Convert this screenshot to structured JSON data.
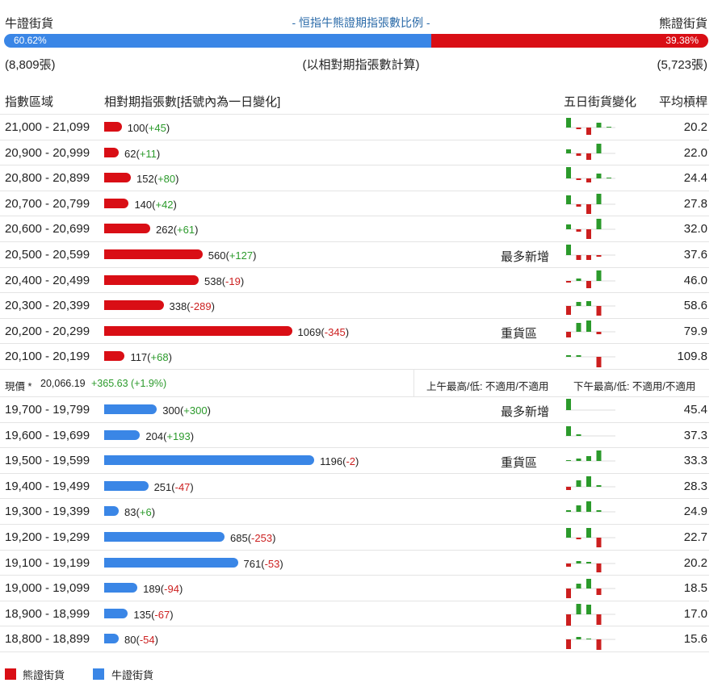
{
  "header": {
    "bull_label": "牛證街貨",
    "title": "- 恒指牛熊證期指張數比例 -",
    "bear_label": "熊證街貨",
    "bull_pct": "60.62%",
    "bear_pct": "39.38%",
    "bull_ratio": 0.6062,
    "bull_count": "(8,809張)",
    "basis_note": "(以相對期指張數計算)",
    "bear_count": "(5,723張)"
  },
  "columns": {
    "range": "指數區域",
    "contracts": "相對期指張數[括號內為一日變化]",
    "five_day": "五日街貨變化",
    "avg_leverage": "平均槓桿"
  },
  "colors": {
    "bear": "#d90e15",
    "bull": "#3a86e6",
    "up": "#2b9a2b",
    "down": "#cc1f1f"
  },
  "bear_rows": [
    {
      "range": "21,000 - 21,099",
      "value": 100,
      "count": "100",
      "change": "+45",
      "tag": "",
      "avg": "20.2",
      "five_day": [
        12,
        -2,
        -9,
        6,
        1
      ]
    },
    {
      "range": "20,900 - 20,999",
      "value": 62,
      "count": "62",
      "change": "+11",
      "tag": "",
      "avg": "22.0",
      "five_day": [
        5,
        -3,
        -8,
        12,
        0
      ]
    },
    {
      "range": "20,800 - 20,899",
      "value": 152,
      "count": "152",
      "change": "+80",
      "tag": "",
      "avg": "24.4",
      "five_day": [
        14,
        -2,
        -5,
        6,
        1
      ]
    },
    {
      "range": "20,700 - 20,799",
      "value": 140,
      "count": "140",
      "change": "+42",
      "tag": "",
      "avg": "27.8",
      "five_day": [
        11,
        -3,
        -12,
        13,
        0
      ]
    },
    {
      "range": "20,600 - 20,699",
      "value": 262,
      "count": "262",
      "change": "+61",
      "tag": "",
      "avg": "32.0",
      "five_day": [
        6,
        -3,
        -12,
        13,
        0
      ]
    },
    {
      "range": "20,500 - 20,599",
      "value": 560,
      "count": "560",
      "change": "+127",
      "tag": "最多新增",
      "avg": "37.6",
      "five_day": [
        13,
        -6,
        -6,
        -2,
        0
      ]
    },
    {
      "range": "20,400 - 20,499",
      "value": 538,
      "count": "538",
      "change": "-19",
      "tag": "",
      "avg": "46.0",
      "five_day": [
        -2,
        3,
        -9,
        13,
        0
      ]
    },
    {
      "range": "20,300 - 20,399",
      "value": 338,
      "count": "338",
      "change": "-289",
      "tag": "",
      "avg": "58.6",
      "five_day": [
        -11,
        5,
        6,
        -12,
        0
      ]
    },
    {
      "range": "20,200 - 20,299",
      "value": 1069,
      "count": "1069",
      "change": "-345",
      "tag": "重貨區",
      "avg": "79.9",
      "five_day": [
        -7,
        11,
        14,
        -3,
        0
      ]
    },
    {
      "range": "20,100 - 20,199",
      "value": 117,
      "count": "117",
      "change": "+68",
      "tag": "",
      "avg": "109.8",
      "five_day": [
        2,
        2,
        0,
        -13,
        0
      ]
    }
  ],
  "price": {
    "label": "現價 *",
    "value": "20,066.19",
    "change": "+365.63 (+1.9%)",
    "am": "上午最高/低: 不適用/不適用",
    "pm": "下午最高/低: 不適用/不適用"
  },
  "bull_rows": [
    {
      "range": "19,700 - 19,799",
      "value": 300,
      "count": "300",
      "change": "+300",
      "tag": "最多新增",
      "avg": "45.4",
      "five_day": [
        14,
        0,
        0,
        0,
        0
      ]
    },
    {
      "range": "19,600 - 19,699",
      "value": 204,
      "count": "204",
      "change": "+193",
      "tag": "",
      "avg": "37.3",
      "five_day": [
        12,
        2,
        0,
        0,
        0
      ]
    },
    {
      "range": "19,500 - 19,599",
      "value": 1196,
      "count": "1196",
      "change": "-2",
      "tag": "重貨區",
      "avg": "33.3",
      "five_day": [
        1,
        3,
        6,
        13,
        0
      ]
    },
    {
      "range": "19,400 - 19,499",
      "value": 251,
      "count": "251",
      "change": "-47",
      "tag": "",
      "avg": "28.3",
      "five_day": [
        -4,
        8,
        13,
        2,
        0
      ]
    },
    {
      "range": "19,300 - 19,399",
      "value": 83,
      "count": "83",
      "change": "+6",
      "tag": "",
      "avg": "24.9",
      "five_day": [
        2,
        8,
        13,
        2,
        0
      ]
    },
    {
      "range": "19,200 - 19,299",
      "value": 685,
      "count": "685",
      "change": "-253",
      "tag": "",
      "avg": "22.7",
      "five_day": [
        12,
        -2,
        12,
        -12,
        0
      ]
    },
    {
      "range": "19,100 - 19,199",
      "value": 761,
      "count": "761",
      "change": "-53",
      "tag": "",
      "avg": "20.2",
      "five_day": [
        -4,
        3,
        2,
        -11,
        0
      ]
    },
    {
      "range": "19,000 - 19,099",
      "value": 189,
      "count": "189",
      "change": "-94",
      "tag": "",
      "avg": "18.5",
      "five_day": [
        -12,
        6,
        12,
        -8,
        0
      ]
    },
    {
      "range": "18,900 - 18,999",
      "value": 135,
      "count": "135",
      "change": "-67",
      "tag": "",
      "avg": "17.0",
      "five_day": [
        -14,
        13,
        12,
        -13,
        0
      ]
    },
    {
      "range": "18,800 - 18,899",
      "value": 80,
      "count": "80",
      "change": "-54",
      "tag": "",
      "avg": "15.6",
      "five_day": [
        -12,
        3,
        1,
        -13,
        0
      ]
    }
  ],
  "legend": {
    "bear": "熊證街貨",
    "bull": "牛證街貨"
  }
}
